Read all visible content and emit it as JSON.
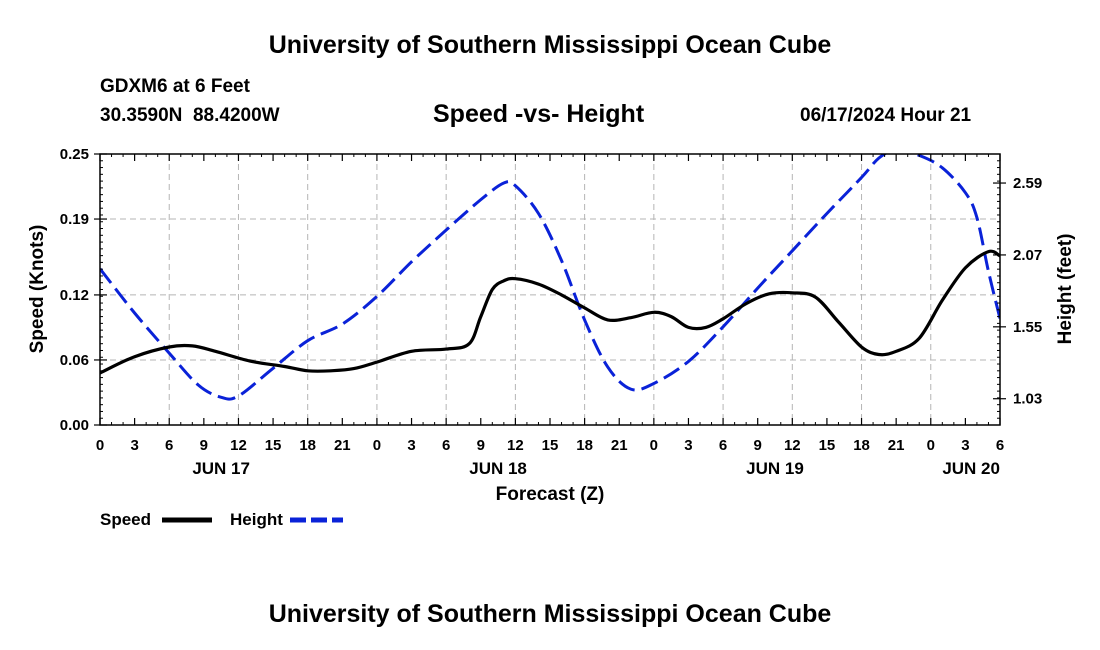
{
  "header": {
    "title": "University of Southern Mississippi Ocean Cube",
    "station": "GDXM6 at 6 Feet",
    "coords": "30.3590N  88.4200W",
    "subtitle": "Speed -vs- Height",
    "datetime": "06/17/2024 Hour 21"
  },
  "footer": {
    "title": "University of Southern Mississippi Ocean Cube"
  },
  "chart_data": {
    "type": "line",
    "title": "Speed -vs- Height",
    "xlabel": "Forecast (Z)",
    "ylabel": "Speed (Knots)",
    "y2label": "Height (feet)",
    "x_start_hour": 0,
    "x_end_hour": 78,
    "x_tick_step_hours": 3,
    "x_tick_labels": [
      "0",
      "3",
      "6",
      "9",
      "12",
      "15",
      "18",
      "21",
      "0",
      "3",
      "6",
      "9",
      "12",
      "15",
      "18",
      "21",
      "0",
      "3",
      "6",
      "9",
      "12",
      "15",
      "18",
      "21",
      "0",
      "3",
      "6"
    ],
    "date_labels": [
      {
        "label": "JUN 17",
        "hour": 10.5
      },
      {
        "label": "JUN 18",
        "hour": 34.5
      },
      {
        "label": "JUN 19",
        "hour": 58.5
      },
      {
        "label": "JUN 20",
        "hour": 75.5
      }
    ],
    "ylim": [
      0,
      0.25
    ],
    "y_ticks": [
      0.0,
      0.06,
      0.12,
      0.19,
      0.25
    ],
    "y_tick_labels": [
      "0.00",
      "0.06",
      "0.12",
      "0.19",
      "0.25"
    ],
    "y2lim": [
      0.84,
      2.8
    ],
    "y2_ticks": [
      1.03,
      1.55,
      2.07,
      2.59
    ],
    "y2_tick_labels": [
      "1.03",
      "1.55",
      "2.07",
      "2.59"
    ],
    "grid": true,
    "series": [
      {
        "name": "Speed",
        "axis": "left",
        "color": "#000000",
        "dash": "solid",
        "points": [
          [
            0,
            0.048
          ],
          [
            3,
            0.063
          ],
          [
            6,
            0.072
          ],
          [
            8,
            0.073
          ],
          [
            10,
            0.068
          ],
          [
            13,
            0.059
          ],
          [
            16,
            0.054
          ],
          [
            18,
            0.05
          ],
          [
            20,
            0.05
          ],
          [
            22,
            0.052
          ],
          [
            24,
            0.058
          ],
          [
            27,
            0.068
          ],
          [
            30,
            0.07
          ],
          [
            32,
            0.075
          ],
          [
            33,
            0.1
          ],
          [
            34,
            0.125
          ],
          [
            35,
            0.133
          ],
          [
            36,
            0.135
          ],
          [
            38,
            0.13
          ],
          [
            40,
            0.12
          ],
          [
            42,
            0.108
          ],
          [
            44,
            0.097
          ],
          [
            46,
            0.099
          ],
          [
            48,
            0.104
          ],
          [
            49.5,
            0.1
          ],
          [
            51,
            0.09
          ],
          [
            52.5,
            0.09
          ],
          [
            54,
            0.098
          ],
          [
            56,
            0.112
          ],
          [
            58,
            0.121
          ],
          [
            60,
            0.122
          ],
          [
            62,
            0.118
          ],
          [
            64,
            0.095
          ],
          [
            66,
            0.072
          ],
          [
            67.5,
            0.065
          ],
          [
            69,
            0.068
          ],
          [
            71,
            0.08
          ],
          [
            73,
            0.115
          ],
          [
            75,
            0.145
          ],
          [
            77,
            0.16
          ],
          [
            78,
            0.156
          ]
        ]
      },
      {
        "name": "Height",
        "axis": "right",
        "color": "#0a22d8",
        "dash": "dashed",
        "points": [
          [
            0,
            1.97
          ],
          [
            3,
            1.65
          ],
          [
            6,
            1.36
          ],
          [
            8.5,
            1.13
          ],
          [
            10.5,
            1.04
          ],
          [
            12,
            1.05
          ],
          [
            15,
            1.25
          ],
          [
            18,
            1.45
          ],
          [
            21,
            1.57
          ],
          [
            24,
            1.77
          ],
          [
            27,
            2.02
          ],
          [
            30,
            2.25
          ],
          [
            33,
            2.47
          ],
          [
            35,
            2.59
          ],
          [
            36,
            2.57
          ],
          [
            38,
            2.37
          ],
          [
            40,
            2.03
          ],
          [
            42,
            1.6
          ],
          [
            44,
            1.26
          ],
          [
            46,
            1.1
          ],
          [
            48,
            1.14
          ],
          [
            51,
            1.3
          ],
          [
            54,
            1.55
          ],
          [
            57,
            1.83
          ],
          [
            60,
            2.1
          ],
          [
            63,
            2.37
          ],
          [
            66,
            2.63
          ],
          [
            67.5,
            2.77
          ],
          [
            69,
            2.83
          ],
          [
            71,
            2.79
          ],
          [
            73,
            2.7
          ],
          [
            75,
            2.52
          ],
          [
            76,
            2.34
          ],
          [
            77,
            1.95
          ],
          [
            78,
            1.61
          ]
        ]
      }
    ],
    "legend": {
      "placement": "bottom-left",
      "entries": [
        "Speed",
        "Height"
      ]
    }
  }
}
